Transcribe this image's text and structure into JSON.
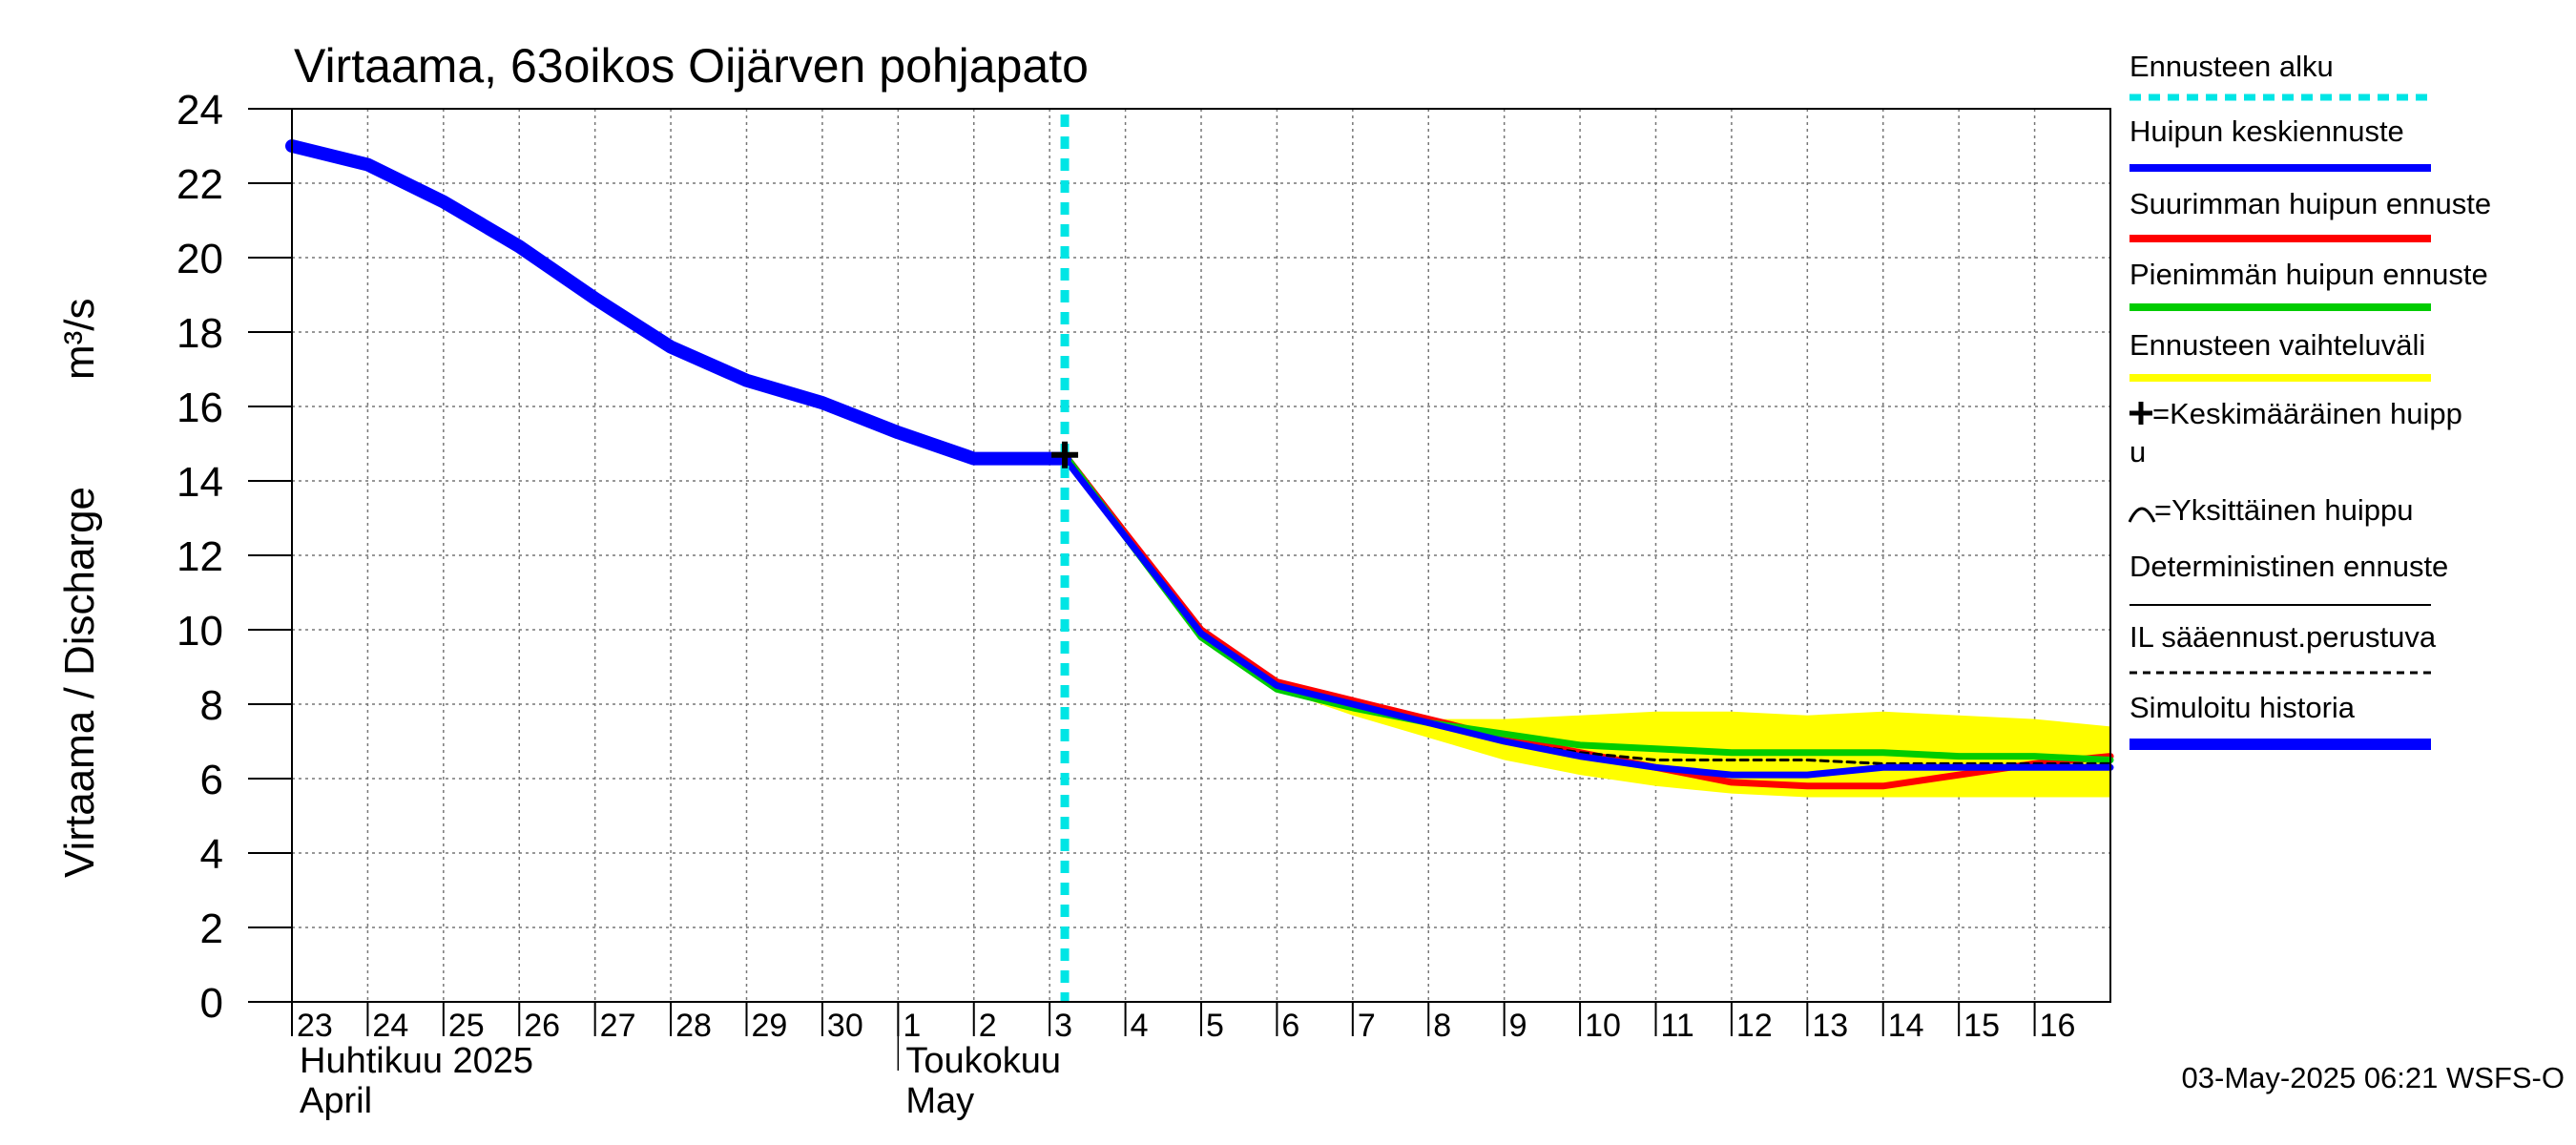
{
  "chart_data": {
    "type": "line",
    "title": "Virtaama, 63oikos Oijärven pohjapato",
    "ylabel": "Virtaama / Discharge",
    "yunit": "m³/s",
    "ylim": [
      0,
      24
    ],
    "yticks": [
      0,
      2,
      4,
      6,
      8,
      10,
      12,
      14,
      16,
      18,
      20,
      22,
      24
    ],
    "x_range_days": [
      0,
      24
    ],
    "day_labels": [
      "23",
      "24",
      "25",
      "26",
      "27",
      "28",
      "29",
      "30",
      "1",
      "2",
      "3",
      "4",
      "5",
      "6",
      "7",
      "8",
      "9",
      "10",
      "11",
      "12",
      "13",
      "14",
      "15",
      "16"
    ],
    "months": [
      {
        "fi": "Huhtikuu  2025",
        "en": "April",
        "start_day": 0
      },
      {
        "fi": "Toukokuu",
        "en": "May",
        "start_day": 8
      }
    ],
    "forecast_start_day": 10.2,
    "grid": true,
    "series": [
      {
        "name": "Ennusteen vaihteluväli",
        "kind": "band",
        "color": "#ffff00",
        "x": [
          13,
          14,
          15,
          16,
          17,
          18,
          19,
          20,
          21,
          22,
          23,
          24
        ],
        "lower": [
          8.4,
          7.7,
          7.1,
          6.5,
          6.1,
          5.8,
          5.6,
          5.5,
          5.5,
          5.5,
          5.5,
          5.5
        ],
        "upper": [
          8.6,
          8.0,
          7.6,
          7.6,
          7.7,
          7.8,
          7.8,
          7.7,
          7.8,
          7.7,
          7.6,
          7.4
        ]
      },
      {
        "name": "Suurimman huipun ennuste",
        "kind": "line",
        "color": "#ff0000",
        "x": [
          10.2,
          11,
          12,
          13,
          14,
          15,
          16,
          17,
          18,
          19,
          20,
          21,
          22,
          23,
          24
        ],
        "y": [
          14.7,
          12.6,
          10.0,
          8.6,
          8.1,
          7.6,
          7.1,
          6.7,
          6.3,
          5.9,
          5.8,
          5.8,
          6.1,
          6.4,
          6.6
        ]
      },
      {
        "name": "Pienimmän huipun ennuste",
        "kind": "line",
        "color": "#00cc00",
        "x": [
          10.2,
          11,
          12,
          13,
          14,
          15,
          16,
          17,
          18,
          19,
          20,
          21,
          22,
          23,
          24
        ],
        "y": [
          14.7,
          12.5,
          9.8,
          8.4,
          7.9,
          7.5,
          7.2,
          6.9,
          6.8,
          6.7,
          6.7,
          6.7,
          6.6,
          6.6,
          6.5
        ]
      },
      {
        "name": "IL sääennust.perustuva",
        "kind": "dashed",
        "color": "#000000",
        "x": [
          10.2,
          11,
          12,
          13,
          14,
          15,
          16,
          17,
          18,
          19,
          20,
          21,
          22,
          23,
          24
        ],
        "y": [
          14.7,
          12.5,
          9.9,
          8.5,
          8.0,
          7.5,
          7.0,
          6.7,
          6.5,
          6.5,
          6.5,
          6.4,
          6.4,
          6.4,
          6.4
        ]
      },
      {
        "name": "Huipun keskiennuste",
        "kind": "line",
        "color": "#0000ff",
        "x": [
          10.2,
          11,
          12,
          13,
          14,
          15,
          16,
          17,
          18,
          19,
          20,
          21,
          22,
          23,
          24
        ],
        "y": [
          14.6,
          12.5,
          9.9,
          8.5,
          8.0,
          7.5,
          7.0,
          6.6,
          6.3,
          6.1,
          6.1,
          6.3,
          6.3,
          6.3,
          6.3
        ]
      },
      {
        "name": "Simuloitu historia",
        "kind": "thick",
        "color": "#0000ff",
        "x": [
          0,
          1,
          2,
          3,
          4,
          5,
          6,
          7,
          8,
          9,
          10.2
        ],
        "y": [
          23.0,
          22.5,
          21.5,
          20.3,
          18.9,
          17.6,
          16.7,
          16.1,
          15.3,
          14.6,
          14.6
        ]
      }
    ],
    "peak_marker": {
      "x": 10.2,
      "y": 14.7,
      "symbol": "+"
    },
    "legend_position": "right",
    "legend": [
      {
        "label": "Ennusteen alku",
        "style": "dotted",
        "color": "#00e5e5"
      },
      {
        "label": "Huipun keskiennuste",
        "style": "solid",
        "color": "#0000ff"
      },
      {
        "label": "Suurimman huipun ennuste",
        "style": "solid",
        "color": "#ff0000"
      },
      {
        "label": "Pienimmän huipun ennuste",
        "style": "solid",
        "color": "#00cc00"
      },
      {
        "label": "Ennusteen vaihteluväli",
        "style": "solid",
        "color": "#ffff00"
      },
      {
        "label": "=Keskimääräinen huipp",
        "label2": "u",
        "style": "plus",
        "color": "#000000"
      },
      {
        "label": "=Yksittäinen huippu",
        "style": "arc",
        "color": "#000000"
      },
      {
        "label": "Deterministinen ennuste",
        "style": "thin",
        "color": "#000000"
      },
      {
        "label": "IL sääennust.perustuva",
        "style": "dashed",
        "color": "#000000"
      },
      {
        "label": "Simuloitu historia",
        "style": "thick",
        "color": "#0000ff"
      }
    ],
    "footer": "03-May-2025 06:21 WSFS-O"
  }
}
